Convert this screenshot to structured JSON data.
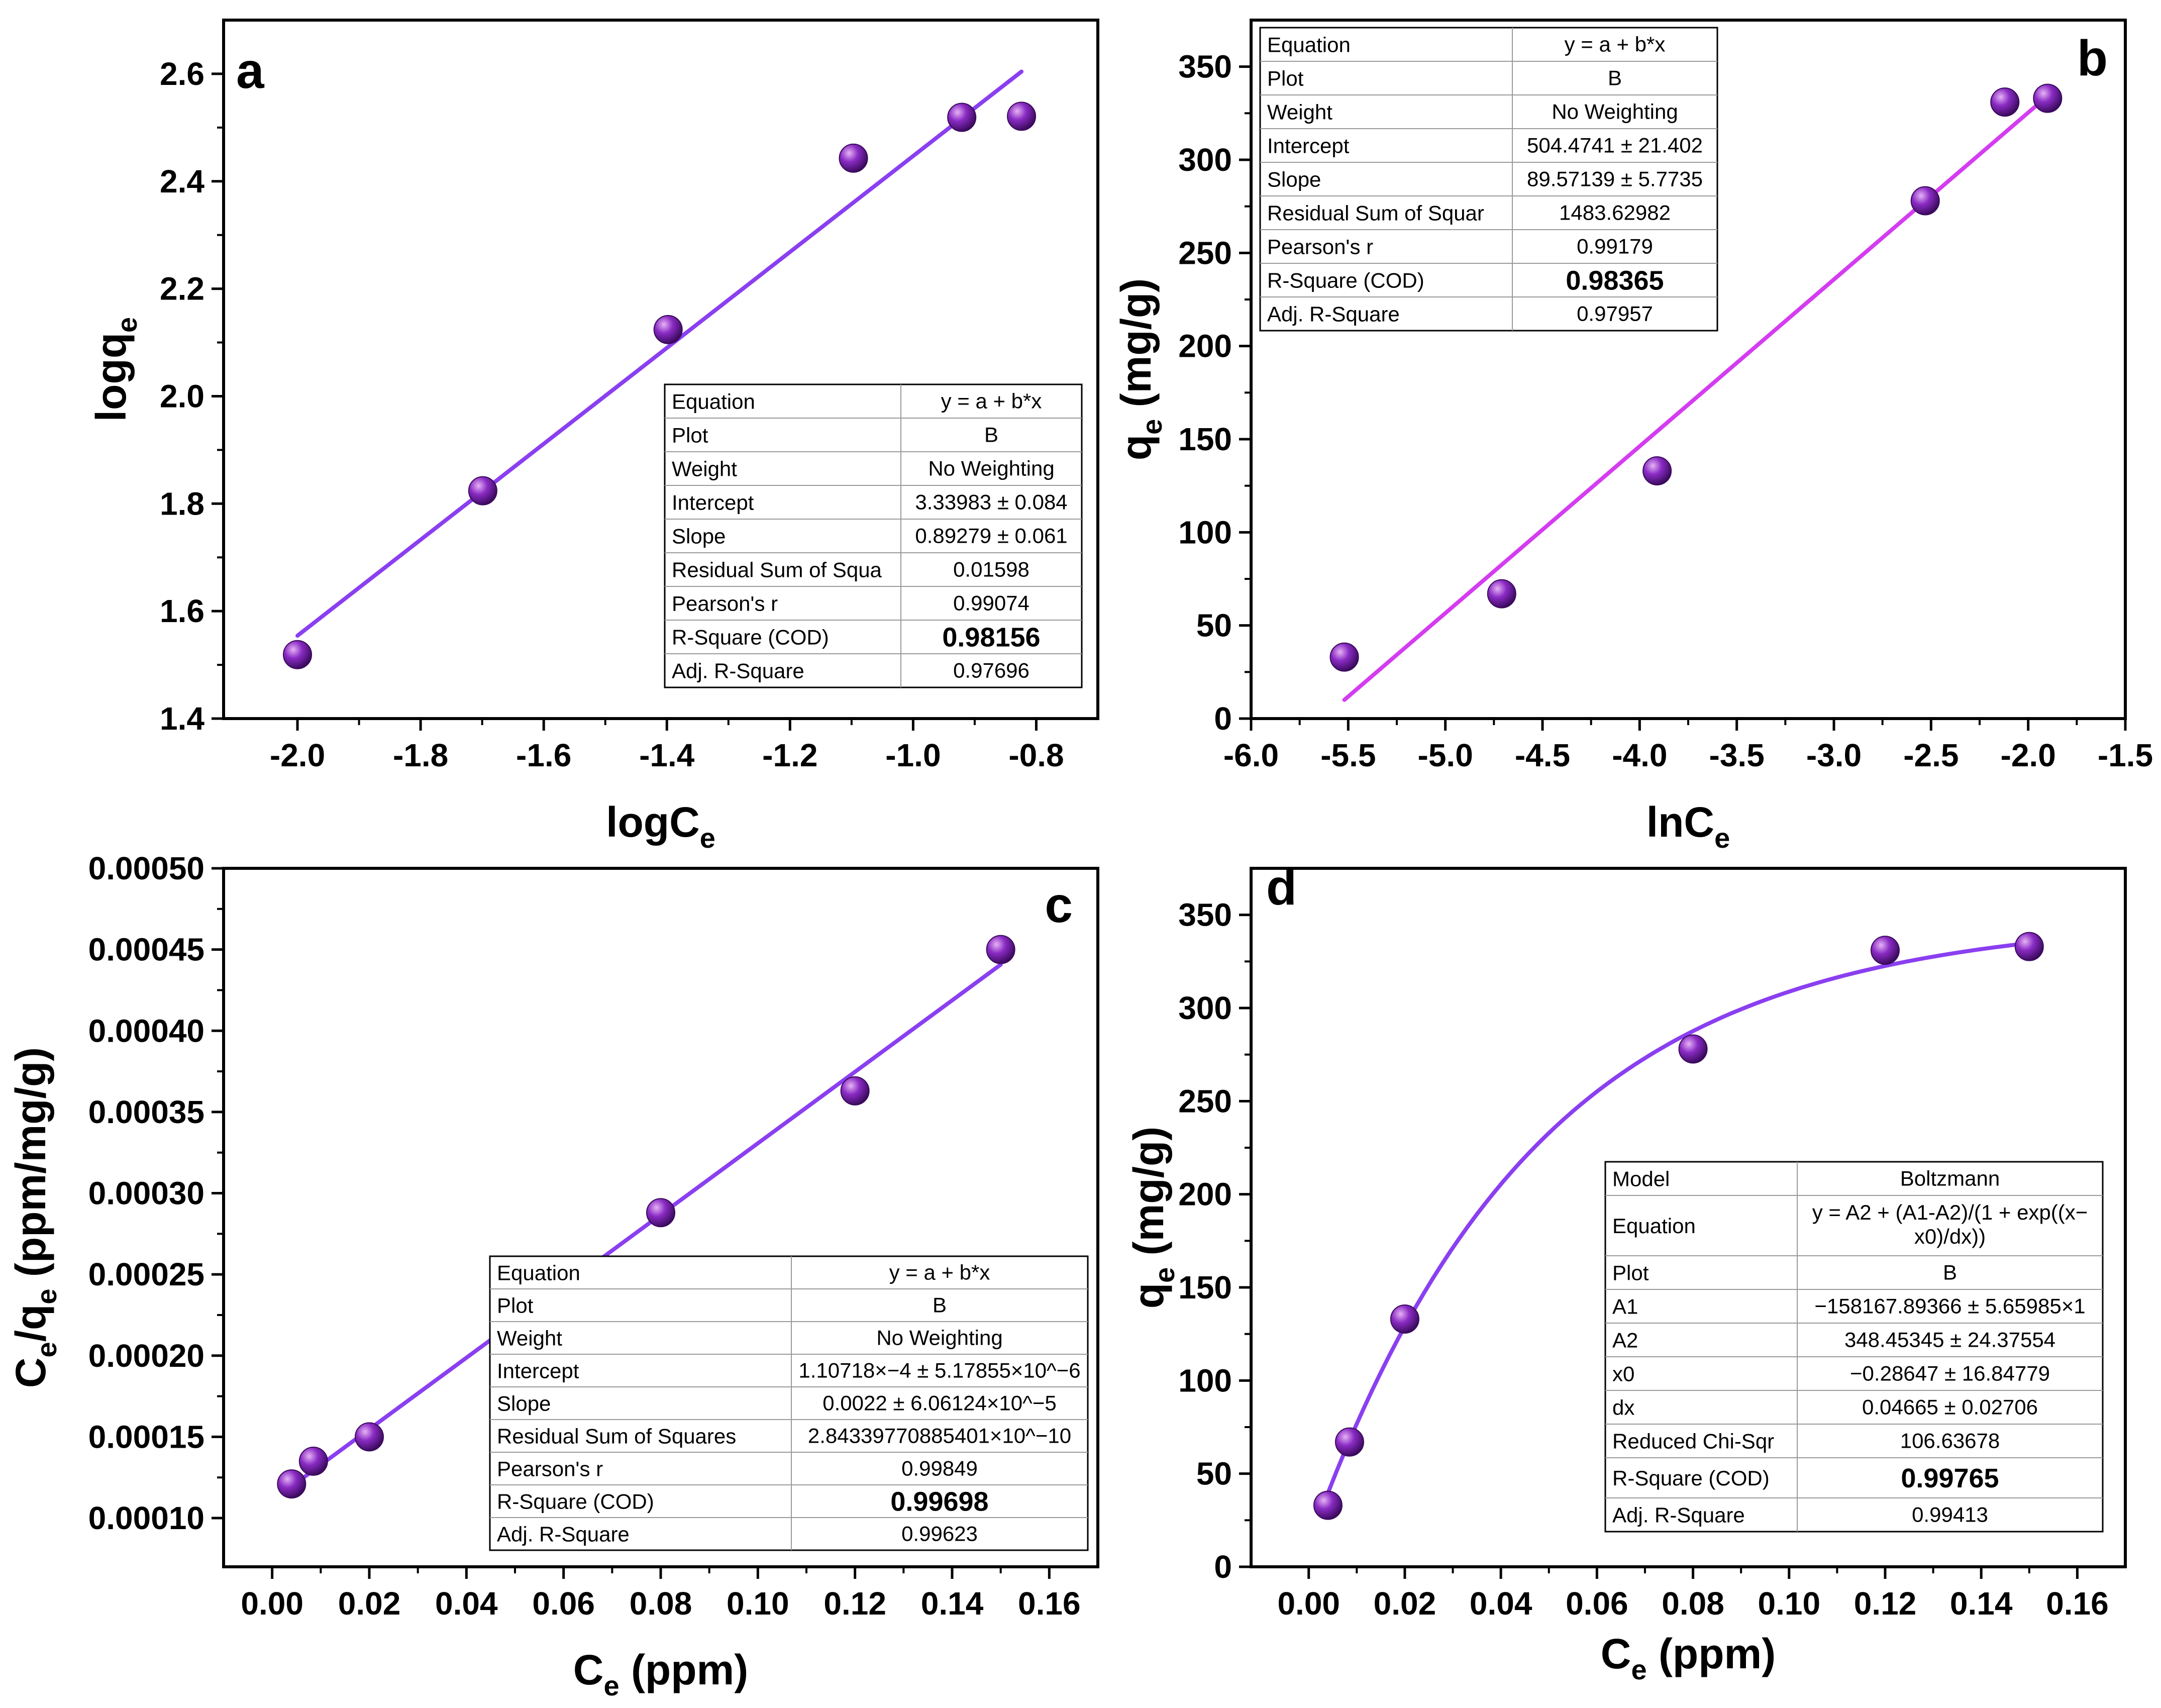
{
  "colors": {
    "marker_highlight": "#e6b3f5",
    "marker_mid": "#8a2bc4",
    "marker_dark": "#3a0a5c",
    "fit_a": "#8a3ff0",
    "fit_b": "#d43cf0",
    "fit_c": "#8a3ff0",
    "fit_d": "#8a3ff0",
    "axis": "#000000",
    "table_border": "#9a9a9a"
  },
  "chart_data": [
    {
      "type": "scatter",
      "panel": "a",
      "xlabel": "logC",
      "xlabel_sub": "e",
      "ylabel": "logq",
      "ylabel_sub": "e",
      "xlim": [
        -2.12,
        -0.7
      ],
      "ylim": [
        1.4,
        2.7
      ],
      "xticks": [
        -2.0,
        -1.8,
        -1.6,
        -1.4,
        -1.2,
        -1.0,
        -0.8
      ],
      "xtick_labels": [
        "-2.0",
        "-1.8",
        "-1.6",
        "-1.4",
        "-1.2",
        "-1.0",
        "-0.8"
      ],
      "yticks": [
        1.4,
        1.6,
        1.8,
        2.0,
        2.2,
        2.4,
        2.6
      ],
      "ytick_labels": [
        "1.4",
        "1.6",
        "1.8",
        "2.0",
        "2.2",
        "2.4",
        "2.6"
      ],
      "x": [
        -2.0,
        -1.699,
        -1.398,
        -1.097,
        -0.921,
        -0.824
      ],
      "y": [
        1.519,
        1.824,
        2.124,
        2.443,
        2.519,
        2.521
      ],
      "fit": {
        "kind": "linear",
        "intercept": 3.33983,
        "slope": 0.89279,
        "x_range": [
          -2.0,
          -0.824
        ]
      },
      "stats_table": {
        "rows": [
          [
            "Equation",
            "y = a + b*x"
          ],
          [
            "Plot",
            "B"
          ],
          [
            "Weight",
            "No Weighting"
          ],
          [
            "Intercept",
            "3.33983 ± 0.084"
          ],
          [
            "Slope",
            "0.89279 ± 0.061"
          ],
          [
            "Residual Sum of Squa",
            "0.01598"
          ],
          [
            "Pearson's r",
            "0.99074"
          ],
          [
            "R-Square (COD)",
            "0.98156"
          ],
          [
            "Adj. R-Square",
            "0.97696"
          ]
        ],
        "bold_row": 7
      }
    },
    {
      "type": "scatter",
      "panel": "b",
      "xlabel": "lnC",
      "xlabel_sub": "e",
      "ylabel": "q",
      "ylabel_sub": "e",
      "ylabel_suffix": " (mg/g)",
      "xlim": [
        -6.0,
        -1.5
      ],
      "ylim": [
        0,
        375
      ],
      "xticks": [
        -6.0,
        -5.5,
        -5.0,
        -4.5,
        -4.0,
        -3.5,
        -3.0,
        -2.5,
        -2.0,
        -1.5
      ],
      "xtick_labels": [
        "-6.0",
        "-5.5",
        "-5.0",
        "-4.5",
        "-4.0",
        "-3.5",
        "-3.0",
        "-2.5",
        "-2.0",
        "-1.5"
      ],
      "yticks": [
        0,
        50,
        100,
        150,
        200,
        250,
        300,
        350
      ],
      "ytick_labels": [
        "0",
        "50",
        "100",
        "150",
        "200",
        "250",
        "300",
        "350"
      ],
      "x": [
        -5.52,
        -4.71,
        -3.91,
        -2.53,
        -2.12,
        -1.9
      ],
      "y": [
        33,
        67,
        133,
        278,
        331,
        333
      ],
      "fit": {
        "kind": "linear",
        "intercept": 504.4741,
        "slope": 89.57139,
        "x_range": [
          -5.52,
          -1.9
        ]
      },
      "stats_table": {
        "rows": [
          [
            "Equation",
            "y = a + b*x"
          ],
          [
            "Plot",
            "B"
          ],
          [
            "Weight",
            "No Weighting"
          ],
          [
            "Intercept",
            "504.4741 ± 21.402"
          ],
          [
            "Slope",
            "89.57139 ± 5.7735"
          ],
          [
            "Residual Sum of Squar",
            "1483.62982"
          ],
          [
            "Pearson's r",
            "0.99179"
          ],
          [
            "R-Square (COD)",
            "0.98365"
          ],
          [
            "Adj. R-Square",
            "0.97957"
          ]
        ],
        "bold_row": 7
      }
    },
    {
      "type": "scatter",
      "panel": "c",
      "xlabel": "C",
      "xlabel_sub": "e",
      "xlabel_suffix": " (ppm)",
      "ylabel": "C",
      "ylabel_sub": "e",
      "ylabel_mid": "/q",
      "ylabel_sub2": "e",
      "ylabel_suffix": " (ppm/mg/g)",
      "xlim": [
        -0.01,
        0.17
      ],
      "ylim": [
        7e-05,
        0.0005
      ],
      "xticks": [
        0.0,
        0.02,
        0.04,
        0.06,
        0.08,
        0.1,
        0.12,
        0.14,
        0.16
      ],
      "xtick_labels": [
        "0.00",
        "0.02",
        "0.04",
        "0.06",
        "0.08",
        "0.10",
        "0.12",
        "0.14",
        "0.16"
      ],
      "yticks": [
        0.0001,
        0.00015,
        0.0002,
        0.00025,
        0.0003,
        0.00035,
        0.0004,
        0.00045,
        0.0005
      ],
      "ytick_labels": [
        "0.00010",
        "0.00015",
        "0.00020",
        "0.00025",
        "0.00030",
        "0.00035",
        "0.00040",
        "0.00045",
        "0.00050"
      ],
      "x": [
        0.004,
        0.0085,
        0.02,
        0.08,
        0.12,
        0.15
      ],
      "y": [
        0.000121,
        0.000135,
        0.00015,
        0.000288,
        0.000363,
        0.00045
      ],
      "fit": {
        "kind": "linear",
        "intercept": 0.000110718,
        "slope": 0.0022,
        "x_range": [
          0.004,
          0.15
        ]
      },
      "stats_table": {
        "rows": [
          [
            "Equation",
            "y = a + b*x"
          ],
          [
            "Plot",
            "B"
          ],
          [
            "Weight",
            "No Weighting"
          ],
          [
            "Intercept",
            "1.10718×−4 ± 5.17855×10^−6"
          ],
          [
            "Slope",
            "0.0022 ± 6.06124×10^−5"
          ],
          [
            "Residual Sum of Squares",
            "2.84339770885401×10^−10"
          ],
          [
            "Pearson's r",
            "0.99849"
          ],
          [
            "R-Square (COD)",
            "0.99698"
          ],
          [
            "Adj. R-Square",
            "0.99623"
          ]
        ],
        "bold_row": 7
      }
    },
    {
      "type": "scatter",
      "panel": "d",
      "xlabel": "C",
      "xlabel_sub": "e",
      "xlabel_suffix": " (ppm)",
      "ylabel": "q",
      "ylabel_sub": "e",
      "ylabel_suffix": " (mg/g)",
      "xlim": [
        -0.012,
        0.17
      ],
      "ylim": [
        0,
        375
      ],
      "xticks": [
        0.0,
        0.02,
        0.04,
        0.06,
        0.08,
        0.1,
        0.12,
        0.14,
        0.16
      ],
      "xtick_labels": [
        "0.00",
        "0.02",
        "0.04",
        "0.06",
        "0.08",
        "0.10",
        "0.12",
        "0.14",
        "0.16"
      ],
      "yticks": [
        0,
        50,
        100,
        150,
        200,
        250,
        300,
        350
      ],
      "ytick_labels": [
        "0",
        "50",
        "100",
        "150",
        "200",
        "250",
        "300",
        "350"
      ],
      "x": [
        0.004,
        0.0085,
        0.02,
        0.08,
        0.12,
        0.15
      ],
      "y": [
        33,
        67,
        133,
        278,
        331,
        333
      ],
      "fit": {
        "kind": "saturation",
        "asymptote": 348.5,
        "rate": 0.0468,
        "x_offset": -0.00165,
        "x_range": [
          0.004,
          0.15
        ]
      },
      "stats_table": {
        "rows": [
          [
            "Model",
            "Boltzmann"
          ],
          [
            "Equation",
            "y = A2 + (A1-A2)/(1 + exp((x−|x0)/dx))"
          ],
          [
            "Plot",
            "B"
          ],
          [
            "A1",
            "−158167.89366 ± 5.65985×1"
          ],
          [
            "A2",
            "348.45345 ± 24.37554"
          ],
          [
            "x0",
            "−0.28647 ± 16.84779"
          ],
          [
            "dx",
            "0.04665 ± 0.02706"
          ],
          [
            "Reduced Chi-Sqr",
            "106.63678"
          ],
          [
            "R-Square (COD)",
            "0.99765"
          ],
          [
            "Adj. R-Square",
            "0.99413"
          ]
        ],
        "bold_row": 8
      }
    }
  ]
}
